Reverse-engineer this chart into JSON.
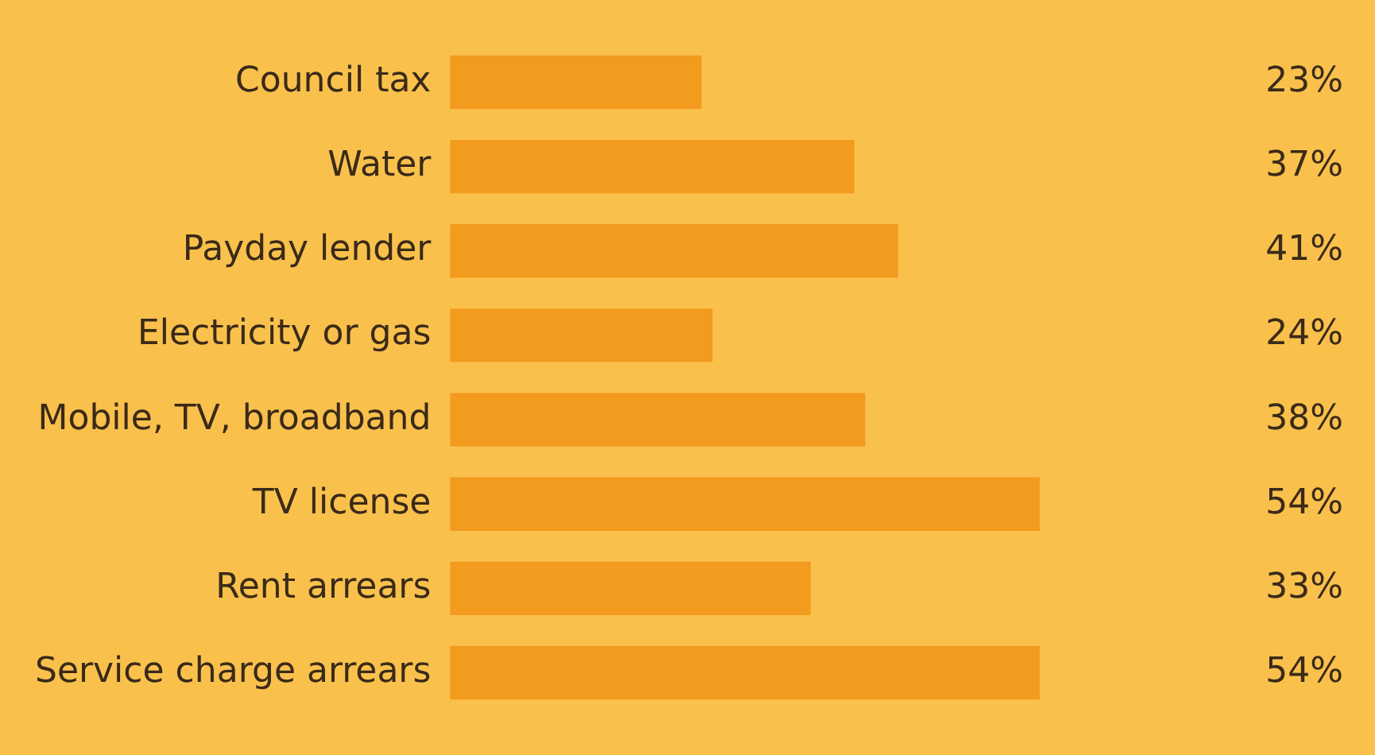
{
  "chart_data": {
    "type": "bar",
    "orientation": "horizontal",
    "categories": [
      "Council tax",
      "Water",
      "Payday lender",
      "Electricity or gas",
      "Mobile, TV, broadband",
      "TV license",
      "Rent arrears",
      "Service charge arrears"
    ],
    "values": [
      23,
      37,
      41,
      24,
      38,
      54,
      33,
      54
    ],
    "value_labels": [
      "23%",
      "37%",
      "41%",
      "24%",
      "38%",
      "54%",
      "33%",
      "54%"
    ],
    "color": "#f39b1f",
    "grid": false,
    "legend": false
  }
}
